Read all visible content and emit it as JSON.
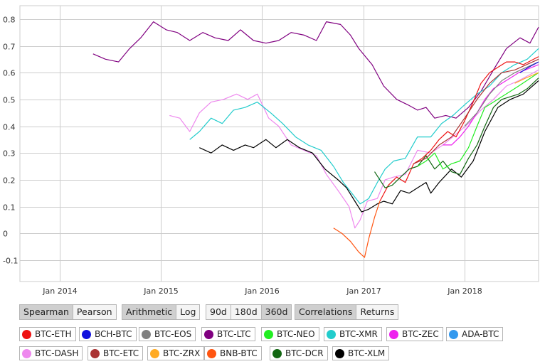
{
  "controls": {
    "method": {
      "options": [
        "Spearman",
        "Pearson"
      ],
      "active": "Spearman"
    },
    "scale": {
      "options": [
        "Arithmetic",
        "Log"
      ],
      "active": "Arithmetic"
    },
    "window": {
      "options": [
        "90d",
        "180d",
        "360d"
      ],
      "active": "360d"
    },
    "view": {
      "options": [
        "Correlations",
        "Returns"
      ],
      "active": "Correlations"
    }
  },
  "legend": [
    {
      "label": "BTC-ETH",
      "color": "#ee1111"
    },
    {
      "label": "BCH-BTC",
      "color": "#1111dd"
    },
    {
      "label": "BTC-EOS",
      "color": "#808080"
    },
    {
      "label": "BTC-LTC",
      "color": "#800080"
    },
    {
      "label": "BTC-NEO",
      "color": "#22ee22"
    },
    {
      "label": "BTC-XMR",
      "color": "#22cccc"
    },
    {
      "label": "BTC-ZEC",
      "color": "#ee22ee"
    },
    {
      "label": "ADA-BTC",
      "color": "#3399ee"
    },
    {
      "label": "BTC-DASH",
      "color": "#ee88ee"
    },
    {
      "label": "BTC-ETC",
      "color": "#aa3333"
    },
    {
      "label": "BTC-ZRX",
      "color": "#ffaa22"
    },
    {
      "label": "BNB-BTC",
      "color": "#ff5511"
    },
    {
      "label": "BTC-DCR",
      "color": "#116611"
    },
    {
      "label": "BTC-XLM",
      "color": "#000000"
    }
  ],
  "chart_data": {
    "type": "line",
    "x_axis": {
      "type": "date",
      "ticks": [
        "Jan 2014",
        "Jan 2015",
        "Jan 2016",
        "Jan 2017",
        "Jan 2018"
      ],
      "range": [
        "2013-08-10",
        "2018-09-25"
      ]
    },
    "y_axis": {
      "ticks": [
        "-0.1",
        "0",
        "0.1",
        "0.2",
        "0.3",
        "0.4",
        "0.5",
        "0.6",
        "0.7",
        "0.8"
      ],
      "range": [
        -0.18,
        0.85
      ]
    },
    "grid": true,
    "series": [
      {
        "name": "BTC-LTC",
        "color": "#800080",
        "points": [
          [
            "2014-05-01",
            0.67
          ],
          [
            "2014-06-15",
            0.65
          ],
          [
            "2014-08-01",
            0.64
          ],
          [
            "2014-09-10",
            0.69
          ],
          [
            "2014-10-20",
            0.73
          ],
          [
            "2014-12-05",
            0.79
          ],
          [
            "2015-01-20",
            0.76
          ],
          [
            "2015-03-01",
            0.75
          ],
          [
            "2015-04-15",
            0.72
          ],
          [
            "2015-06-01",
            0.75
          ],
          [
            "2015-07-15",
            0.73
          ],
          [
            "2015-09-01",
            0.72
          ],
          [
            "2015-10-15",
            0.76
          ],
          [
            "2015-12-01",
            0.72
          ],
          [
            "2016-01-15",
            0.71
          ],
          [
            "2016-03-01",
            0.72
          ],
          [
            "2016-04-15",
            0.75
          ],
          [
            "2016-06-01",
            0.74
          ],
          [
            "2016-07-15",
            0.72
          ],
          [
            "2016-08-20",
            0.79
          ],
          [
            "2016-10-10",
            0.78
          ],
          [
            "2016-11-15",
            0.74
          ],
          [
            "2016-12-15",
            0.69
          ],
          [
            "2017-02-01",
            0.63
          ],
          [
            "2017-03-15",
            0.55
          ],
          [
            "2017-05-01",
            0.5
          ],
          [
            "2017-06-10",
            0.48
          ],
          [
            "2017-07-15",
            0.46
          ],
          [
            "2017-08-15",
            0.47
          ],
          [
            "2017-09-15",
            0.43
          ],
          [
            "2017-10-25",
            0.44
          ],
          [
            "2017-12-01",
            0.43
          ],
          [
            "2018-01-15",
            0.47
          ],
          [
            "2018-03-01",
            0.53
          ],
          [
            "2018-04-15",
            0.61
          ],
          [
            "2018-06-01",
            0.69
          ],
          [
            "2018-07-20",
            0.73
          ],
          [
            "2018-08-25",
            0.71
          ],
          [
            "2018-09-25",
            0.77
          ]
        ]
      },
      {
        "name": "BTC-DASH",
        "color": "#ee88ee",
        "points": [
          [
            "2015-02-01",
            0.44
          ],
          [
            "2015-03-10",
            0.43
          ],
          [
            "2015-04-15",
            0.38
          ],
          [
            "2015-05-20",
            0.45
          ],
          [
            "2015-07-01",
            0.49
          ],
          [
            "2015-08-15",
            0.5
          ],
          [
            "2015-10-01",
            0.52
          ],
          [
            "2015-11-10",
            0.5
          ],
          [
            "2015-12-15",
            0.52
          ],
          [
            "2016-01-25",
            0.43
          ],
          [
            "2016-03-01",
            0.4
          ],
          [
            "2016-04-15",
            0.33
          ],
          [
            "2016-06-01",
            0.31
          ],
          [
            "2016-07-15",
            0.29
          ],
          [
            "2016-08-20",
            0.22
          ],
          [
            "2016-10-01",
            0.16
          ],
          [
            "2016-11-10",
            0.1
          ],
          [
            "2016-12-01",
            0.02
          ],
          [
            "2016-12-20",
            0.05
          ],
          [
            "2017-01-15",
            0.12
          ],
          [
            "2017-02-20",
            0.13
          ],
          [
            "2017-03-20",
            0.2
          ],
          [
            "2017-04-20",
            0.21
          ],
          [
            "2017-06-01",
            0.22
          ],
          [
            "2017-07-15",
            0.31
          ],
          [
            "2017-09-01",
            0.3
          ],
          [
            "2017-10-15",
            0.33
          ],
          [
            "2017-12-01",
            0.37
          ],
          [
            "2018-01-15",
            0.41
          ],
          [
            "2018-03-01",
            0.46
          ],
          [
            "2018-04-15",
            0.5
          ],
          [
            "2018-06-01",
            0.55
          ],
          [
            "2018-07-15",
            0.57
          ],
          [
            "2018-09-25",
            0.61
          ]
        ]
      },
      {
        "name": "BTC-XMR",
        "color": "#22cccc",
        "points": [
          [
            "2015-04-15",
            0.35
          ],
          [
            "2015-05-20",
            0.38
          ],
          [
            "2015-07-01",
            0.43
          ],
          [
            "2015-08-10",
            0.41
          ],
          [
            "2015-09-20",
            0.46
          ],
          [
            "2015-11-01",
            0.47
          ],
          [
            "2015-12-15",
            0.49
          ],
          [
            "2016-02-01",
            0.45
          ],
          [
            "2016-03-15",
            0.41
          ],
          [
            "2016-05-01",
            0.36
          ],
          [
            "2016-06-15",
            0.33
          ],
          [
            "2016-08-01",
            0.31
          ],
          [
            "2016-09-15",
            0.25
          ],
          [
            "2016-10-20",
            0.19
          ],
          [
            "2016-11-20",
            0.15
          ],
          [
            "2016-12-20",
            0.11
          ],
          [
            "2017-01-20",
            0.13
          ],
          [
            "2017-02-20",
            0.19
          ],
          [
            "2017-03-20",
            0.24
          ],
          [
            "2017-04-20",
            0.27
          ],
          [
            "2017-06-01",
            0.28
          ],
          [
            "2017-07-15",
            0.36
          ],
          [
            "2017-09-01",
            0.36
          ],
          [
            "2017-10-10",
            0.41
          ],
          [
            "2017-11-20",
            0.44
          ],
          [
            "2018-01-01",
            0.48
          ],
          [
            "2018-02-15",
            0.52
          ],
          [
            "2018-04-01",
            0.55
          ],
          [
            "2018-05-15",
            0.6
          ],
          [
            "2018-07-01",
            0.63
          ],
          [
            "2018-08-15",
            0.65
          ],
          [
            "2018-09-25",
            0.69
          ]
        ]
      },
      {
        "name": "BTC-XLM",
        "color": "#000000",
        "points": [
          [
            "2015-05-20",
            0.32
          ],
          [
            "2015-07-01",
            0.3
          ],
          [
            "2015-08-10",
            0.33
          ],
          [
            "2015-09-20",
            0.31
          ],
          [
            "2015-11-01",
            0.33
          ],
          [
            "2015-12-01",
            0.32
          ],
          [
            "2016-01-15",
            0.35
          ],
          [
            "2016-02-20",
            0.32
          ],
          [
            "2016-04-01",
            0.35
          ],
          [
            "2016-05-15",
            0.32
          ],
          [
            "2016-07-01",
            0.3
          ],
          [
            "2016-08-15",
            0.24
          ],
          [
            "2016-10-01",
            0.2
          ],
          [
            "2016-11-01",
            0.17
          ],
          [
            "2016-12-01",
            0.12
          ],
          [
            "2016-12-25",
            0.08
          ],
          [
            "2017-01-20",
            0.09
          ],
          [
            "2017-02-20",
            0.11
          ],
          [
            "2017-03-15",
            0.12
          ],
          [
            "2017-04-15",
            0.11
          ],
          [
            "2017-05-15",
            0.16
          ],
          [
            "2017-06-15",
            0.15
          ],
          [
            "2017-07-15",
            0.17
          ],
          [
            "2017-08-15",
            0.19
          ],
          [
            "2017-09-01",
            0.15
          ],
          [
            "2017-10-01",
            0.19
          ],
          [
            "2017-11-15",
            0.24
          ],
          [
            "2017-12-20",
            0.21
          ],
          [
            "2018-02-01",
            0.27
          ],
          [
            "2018-03-15",
            0.38
          ],
          [
            "2018-05-01",
            0.47
          ],
          [
            "2018-06-15",
            0.5
          ],
          [
            "2018-08-01",
            0.52
          ],
          [
            "2018-09-25",
            0.57
          ]
        ]
      },
      {
        "name": "BNB-BTC",
        "color": "#ff5511",
        "points": [
          [
            "2016-09-15",
            0.02
          ],
          [
            "2016-10-15",
            0.0
          ],
          [
            "2016-11-15",
            -0.03
          ],
          [
            "2016-12-15",
            -0.07
          ],
          [
            "2017-01-05",
            -0.09
          ],
          [
            "2017-01-20",
            -0.02
          ],
          [
            "2017-02-10",
            0.06
          ],
          [
            "2017-03-01",
            0.12
          ]
        ]
      },
      {
        "name": "BTC-ETH",
        "color": "#ee1111",
        "points": [
          [
            "2017-03-01",
            0.12
          ],
          [
            "2017-04-01",
            0.18
          ],
          [
            "2017-05-01",
            0.21
          ],
          [
            "2017-06-01",
            0.19
          ],
          [
            "2017-07-01",
            0.26
          ],
          [
            "2017-08-01",
            0.28
          ],
          [
            "2017-09-01",
            0.31
          ],
          [
            "2017-10-01",
            0.35
          ],
          [
            "2017-11-01",
            0.38
          ],
          [
            "2017-12-01",
            0.36
          ],
          [
            "2018-01-01",
            0.42
          ],
          [
            "2018-02-01",
            0.49
          ],
          [
            "2018-03-01",
            0.56
          ],
          [
            "2018-04-01",
            0.6
          ],
          [
            "2018-05-01",
            0.62
          ],
          [
            "2018-06-01",
            0.64
          ],
          [
            "2018-07-01",
            0.64
          ],
          [
            "2018-08-01",
            0.63
          ],
          [
            "2018-09-25",
            0.66
          ]
        ]
      },
      {
        "name": "BTC-DCR",
        "color": "#116611",
        "points": [
          [
            "2017-02-10",
            0.23
          ],
          [
            "2017-03-01",
            0.2
          ],
          [
            "2017-03-20",
            0.17
          ],
          [
            "2017-04-15",
            0.18
          ],
          [
            "2017-05-15",
            0.21
          ],
          [
            "2017-06-15",
            0.24
          ],
          [
            "2017-07-15",
            0.25
          ],
          [
            "2017-08-15",
            0.29
          ],
          [
            "2017-09-15",
            0.24
          ],
          [
            "2017-10-15",
            0.27
          ],
          [
            "2017-11-15",
            0.23
          ],
          [
            "2017-12-15",
            0.22
          ],
          [
            "2018-01-15",
            0.28
          ],
          [
            "2018-02-15",
            0.33
          ],
          [
            "2018-03-15",
            0.4
          ],
          [
            "2018-04-15",
            0.47
          ],
          [
            "2018-05-15",
            0.5
          ],
          [
            "2018-06-15",
            0.51
          ],
          [
            "2018-07-15",
            0.52
          ],
          [
            "2018-08-15",
            0.54
          ],
          [
            "2018-09-25",
            0.58
          ]
        ]
      },
      {
        "name": "BTC-NEO",
        "color": "#22ee22",
        "points": [
          [
            "2017-07-15",
            0.25
          ],
          [
            "2017-08-15",
            0.27
          ],
          [
            "2017-09-15",
            0.3
          ],
          [
            "2017-10-15",
            0.24
          ],
          [
            "2017-11-15",
            0.26
          ],
          [
            "2017-12-15",
            0.27
          ],
          [
            "2018-01-15",
            0.32
          ],
          [
            "2018-02-15",
            0.4
          ],
          [
            "2018-03-15",
            0.47
          ],
          [
            "2018-04-15",
            0.49
          ],
          [
            "2018-05-15",
            0.51
          ],
          [
            "2018-06-15",
            0.53
          ],
          [
            "2018-07-15",
            0.55
          ],
          [
            "2018-09-25",
            0.6
          ]
        ]
      },
      {
        "name": "BTC-ZEC",
        "color": "#ee22ee",
        "points": [
          [
            "2017-10-15",
            0.33
          ],
          [
            "2017-11-15",
            0.33
          ],
          [
            "2017-12-15",
            0.36
          ],
          [
            "2018-01-15",
            0.4
          ],
          [
            "2018-02-15",
            0.45
          ],
          [
            "2018-03-15",
            0.5
          ],
          [
            "2018-04-15",
            0.54
          ],
          [
            "2018-05-15",
            0.56
          ],
          [
            "2018-06-15",
            0.58
          ],
          [
            "2018-07-15",
            0.6
          ],
          [
            "2018-09-25",
            0.63
          ]
        ]
      },
      {
        "name": "BTC-ETC",
        "color": "#aa3333",
        "points": [
          [
            "2017-07-01",
            0.26
          ],
          [
            "2017-08-15",
            0.28
          ],
          [
            "2017-10-01",
            0.33
          ],
          [
            "2017-11-15",
            0.36
          ],
          [
            "2018-01-01",
            0.43
          ],
          [
            "2018-02-15",
            0.5
          ],
          [
            "2018-04-01",
            0.56
          ],
          [
            "2018-05-15",
            0.6
          ],
          [
            "2018-07-01",
            0.61
          ],
          [
            "2018-09-25",
            0.65
          ]
        ]
      },
      {
        "name": "BTC-EOS",
        "color": "#808080",
        "points": [
          [
            "2018-01-01",
            0.4
          ],
          [
            "2018-02-15",
            0.45
          ],
          [
            "2018-04-01",
            0.52
          ],
          [
            "2018-05-15",
            0.57
          ],
          [
            "2018-07-01",
            0.6
          ],
          [
            "2018-09-25",
            0.64
          ]
        ]
      },
      {
        "name": "BCH-BTC",
        "color": "#1111dd",
        "points": [
          [
            "2018-07-20",
            0.6
          ],
          [
            "2018-08-20",
            0.62
          ],
          [
            "2018-09-25",
            0.64
          ]
        ]
      },
      {
        "name": "BTC-ZRX",
        "color": "#ffaa22",
        "points": [
          [
            "2018-07-01",
            0.56
          ],
          [
            "2018-08-10",
            0.58
          ],
          [
            "2018-09-25",
            0.6
          ]
        ]
      }
    ]
  }
}
